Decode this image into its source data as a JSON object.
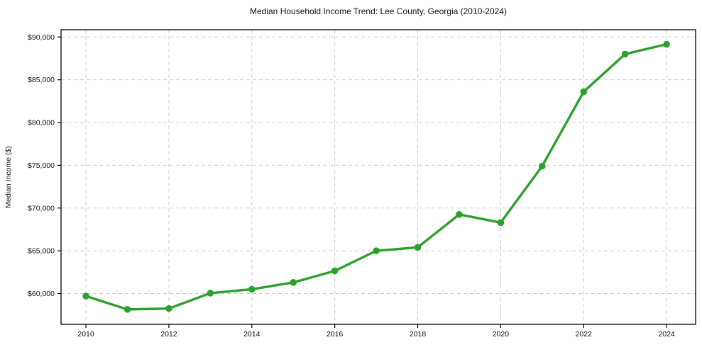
{
  "chart_data": {
    "type": "line",
    "title": "Median Household Income Trend: Lee County, Georgia (2010-2024)",
    "xlabel": "",
    "ylabel": "Median Income ($)",
    "x": [
      2010,
      2011,
      2012,
      2013,
      2014,
      2015,
      2016,
      2017,
      2018,
      2019,
      2020,
      2021,
      2022,
      2023,
      2024
    ],
    "values": [
      59700,
      58150,
      58250,
      60050,
      60500,
      61300,
      62650,
      65000,
      65400,
      69250,
      68300,
      74900,
      83600,
      88000,
      89150
    ],
    "x_ticks": [
      2010,
      2012,
      2014,
      2016,
      2018,
      2020,
      2022,
      2024
    ],
    "x_tick_labels": [
      "2010",
      "2012",
      "2014",
      "2016",
      "2018",
      "2020",
      "2022",
      "2024"
    ],
    "y_ticks": [
      60000,
      65000,
      70000,
      75000,
      80000,
      85000,
      90000
    ],
    "y_tick_labels": [
      "$60,000",
      "$65,000",
      "$70,000",
      "$75,000",
      "$80,000",
      "$85,000",
      "$90,000"
    ],
    "xlim": [
      2009.4,
      2024.7
    ],
    "ylim": [
      56400,
      90850
    ],
    "grid": true,
    "grid_style": "dashed",
    "legend": "none",
    "line_color": "#2ca02c",
    "marker": "circle",
    "grid_color": "#cccccc",
    "axis_color": "#000000",
    "background_color": "#ffffff"
  }
}
